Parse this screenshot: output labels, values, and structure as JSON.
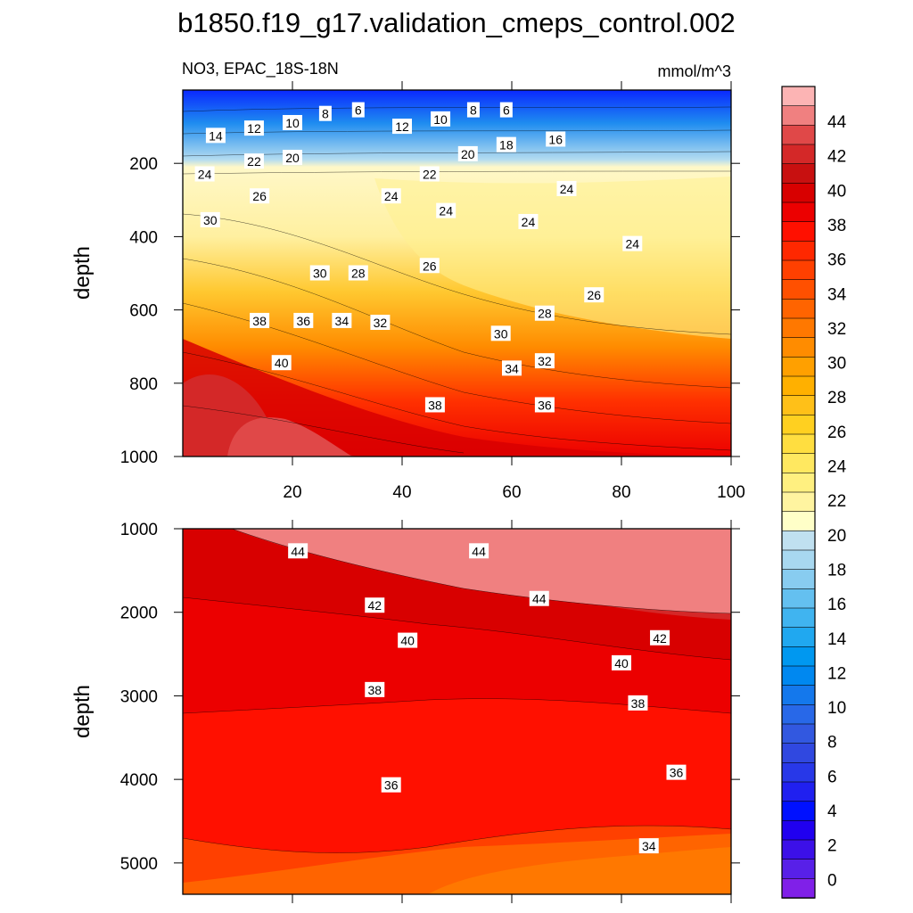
{
  "title": "b1850.f19_g17.validation_cmeps_control.002",
  "chart_data": [
    {
      "type": "heatmap",
      "name": "upper-panel",
      "subtitle_left": "NO3, EPAC_18S-18N",
      "subtitle_right": "mmol/m^3",
      "xlabel": "",
      "ylabel": "depth",
      "xlim": [
        0,
        100
      ],
      "ylim": [
        1000,
        0
      ],
      "xticks": [
        20,
        40,
        60,
        80,
        100
      ],
      "yticks": [
        200,
        400,
        600,
        800,
        1000
      ],
      "contour_labels": [
        {
          "text": "14",
          "x": 6,
          "y": 125
        },
        {
          "text": "12",
          "x": 13,
          "y": 105
        },
        {
          "text": "10",
          "x": 20,
          "y": 90
        },
        {
          "text": "8",
          "x": 26,
          "y": 65
        },
        {
          "text": "6",
          "x": 32,
          "y": 55
        },
        {
          "text": "12",
          "x": 40,
          "y": 100
        },
        {
          "text": "10",
          "x": 47,
          "y": 80
        },
        {
          "text": "8",
          "x": 53,
          "y": 55
        },
        {
          "text": "6",
          "x": 59,
          "y": 55
        },
        {
          "text": "16",
          "x": 68,
          "y": 135
        },
        {
          "text": "18",
          "x": 59,
          "y": 150
        },
        {
          "text": "20",
          "x": 52,
          "y": 175
        },
        {
          "text": "20",
          "x": 20,
          "y": 185
        },
        {
          "text": "22",
          "x": 13,
          "y": 195
        },
        {
          "text": "22",
          "x": 45,
          "y": 230
        },
        {
          "text": "24",
          "x": 4,
          "y": 230
        },
        {
          "text": "26",
          "x": 14,
          "y": 290
        },
        {
          "text": "24",
          "x": 38,
          "y": 290
        },
        {
          "text": "24",
          "x": 48,
          "y": 330
        },
        {
          "text": "24",
          "x": 70,
          "y": 270
        },
        {
          "text": "24",
          "x": 63,
          "y": 360
        },
        {
          "text": "24",
          "x": 82,
          "y": 420
        },
        {
          "text": "30",
          "x": 5,
          "y": 355
        },
        {
          "text": "30",
          "x": 25,
          "y": 500
        },
        {
          "text": "28",
          "x": 32,
          "y": 500
        },
        {
          "text": "26",
          "x": 45,
          "y": 480
        },
        {
          "text": "26",
          "x": 75,
          "y": 560
        },
        {
          "text": "28",
          "x": 66,
          "y": 610
        },
        {
          "text": "38",
          "x": 14,
          "y": 630
        },
        {
          "text": "36",
          "x": 22,
          "y": 630
        },
        {
          "text": "34",
          "x": 29,
          "y": 630
        },
        {
          "text": "32",
          "x": 36,
          "y": 635
        },
        {
          "text": "30",
          "x": 58,
          "y": 665
        },
        {
          "text": "32",
          "x": 66,
          "y": 740
        },
        {
          "text": "34",
          "x": 60,
          "y": 760
        },
        {
          "text": "40",
          "x": 18,
          "y": 745
        },
        {
          "text": "38",
          "x": 46,
          "y": 860
        },
        {
          "text": "36",
          "x": 66,
          "y": 860
        }
      ]
    },
    {
      "type": "heatmap",
      "name": "lower-panel",
      "xlabel": "",
      "ylabel": "depth",
      "xlim": [
        0,
        100
      ],
      "ylim": [
        5375,
        1000
      ],
      "yticks": [
        1000,
        2000,
        3000,
        4000,
        5000
      ],
      "contour_labels": [
        {
          "text": "44",
          "x": 21,
          "y": 1270
        },
        {
          "text": "44",
          "x": 54,
          "y": 1270
        },
        {
          "text": "44",
          "x": 65,
          "y": 1840
        },
        {
          "text": "42",
          "x": 35,
          "y": 1920
        },
        {
          "text": "42",
          "x": 87,
          "y": 2310
        },
        {
          "text": "40",
          "x": 41,
          "y": 2340
        },
        {
          "text": "40",
          "x": 80,
          "y": 2610
        },
        {
          "text": "38",
          "x": 35,
          "y": 2930
        },
        {
          "text": "38",
          "x": 83,
          "y": 3090
        },
        {
          "text": "36",
          "x": 38,
          "y": 4070
        },
        {
          "text": "36",
          "x": 90,
          "y": 3920
        },
        {
          "text": "34",
          "x": 85,
          "y": 4800
        }
      ]
    }
  ],
  "colorbar": {
    "labels": [
      "44",
      "42",
      "40",
      "38",
      "36",
      "34",
      "32",
      "30",
      "28",
      "26",
      "24",
      "22",
      "20",
      "18",
      "16",
      "14",
      "12",
      "10",
      "8",
      "6",
      "4",
      "2",
      "0"
    ],
    "colors": [
      "#fcb4b4",
      "#f08080",
      "#e04848",
      "#d42828",
      "#c81010",
      "#d80000",
      "#ec0000",
      "#ff1000",
      "#ff2800",
      "#ff4000",
      "#ff5000",
      "#ff6400",
      "#ff7800",
      "#ff8c00",
      "#ffa000",
      "#ffb000",
      "#ffc018",
      "#ffd020",
      "#ffde40",
      "#ffe860",
      "#fff080",
      "#fff4a0",
      "#ffffc8",
      "#c0e0f0",
      "#a8d8f0",
      "#88ccf0",
      "#64c0f0",
      "#40b4f0",
      "#20a8f0",
      "#0098f0",
      "#0088f0",
      "#1478ec",
      "#2868e8",
      "#3258e0",
      "#3048e0",
      "#2838e8",
      "#2020f0",
      "#0010ff",
      "#2000f0",
      "#3c10e8",
      "#5820e8",
      "#8020e8"
    ]
  }
}
